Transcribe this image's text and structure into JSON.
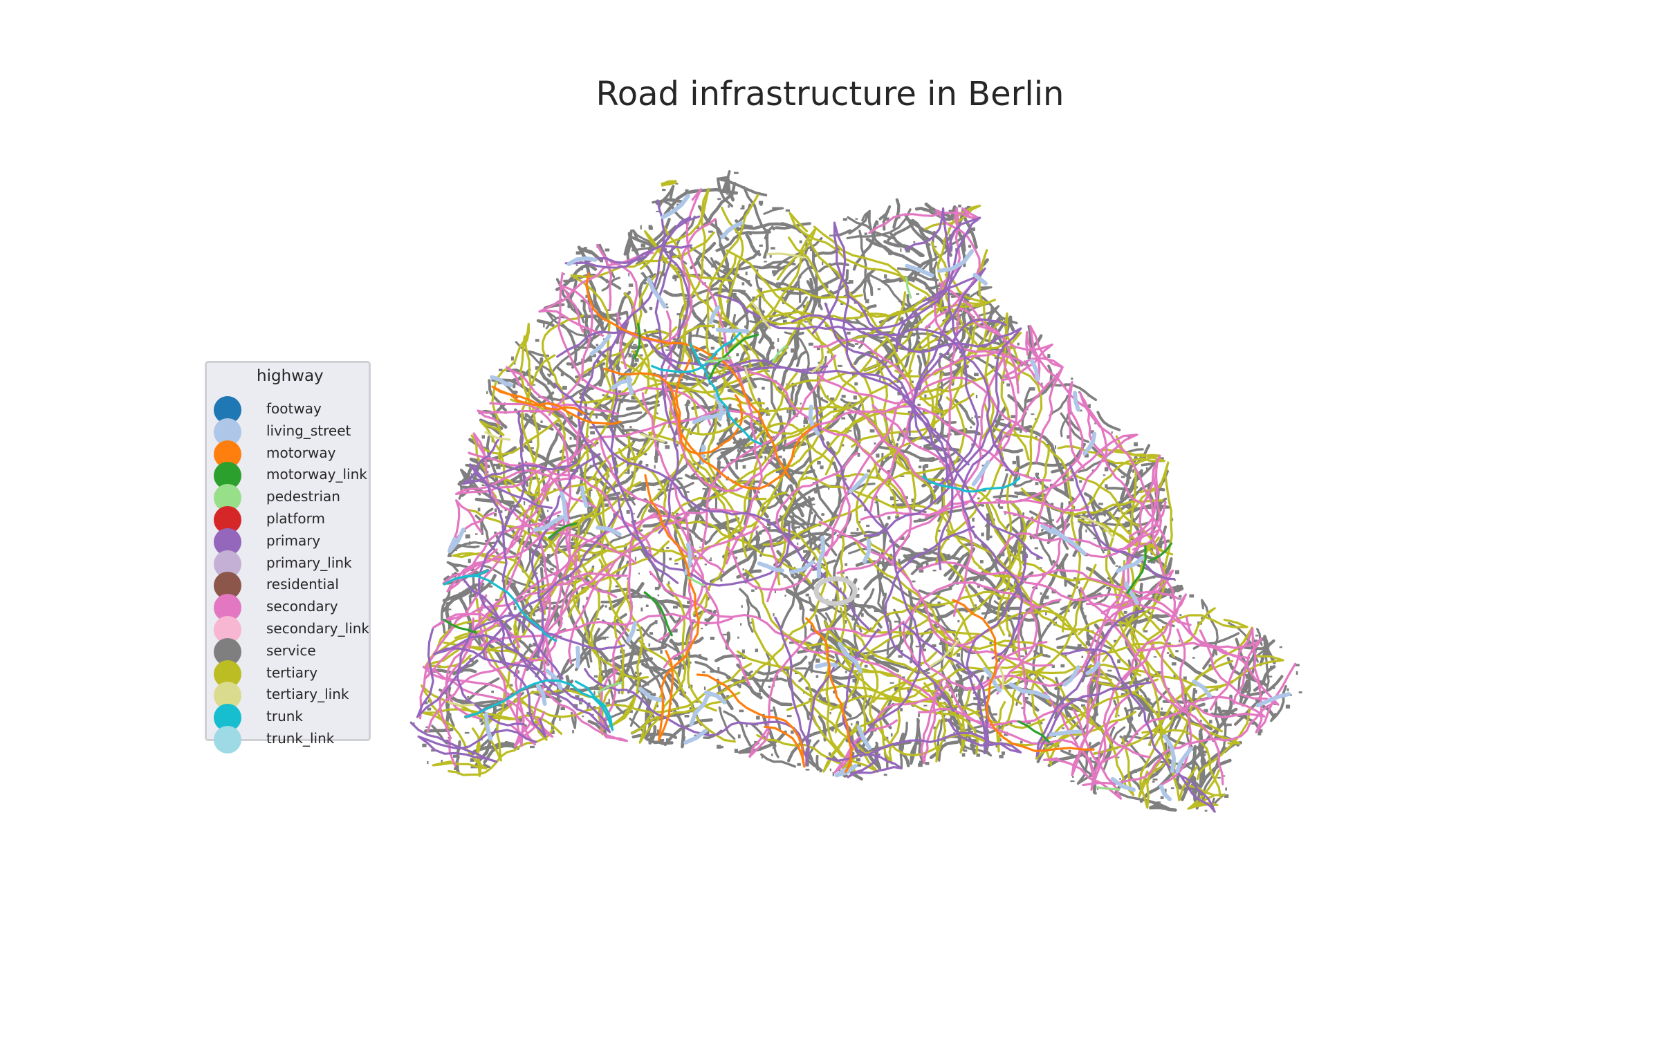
{
  "map": {
    "title": "Road infrastructure in Berlin"
  },
  "legend": {
    "title": "highway",
    "items": [
      {
        "label": "footway",
        "color": "#1f77b4"
      },
      {
        "label": "living_street",
        "color": "#aec7e8"
      },
      {
        "label": "motorway",
        "color": "#ff7f0e"
      },
      {
        "label": "motorway_link",
        "color": "#2ca02c"
      },
      {
        "label": "pedestrian",
        "color": "#98df8a"
      },
      {
        "label": "platform",
        "color": "#d62728"
      },
      {
        "label": "primary",
        "color": "#9467bd"
      },
      {
        "label": "primary_link",
        "color": "#c5b0d5"
      },
      {
        "label": "residential",
        "color": "#8c564b"
      },
      {
        "label": "secondary",
        "color": "#e377c2"
      },
      {
        "label": "secondary_link",
        "color": "#f7b6d2"
      },
      {
        "label": "service",
        "color": "#7f7f7f"
      },
      {
        "label": "tertiary",
        "color": "#bcbd22"
      },
      {
        "label": "tertiary_link",
        "color": "#dbdb8d"
      },
      {
        "label": "trunk",
        "color": "#17becf"
      },
      {
        "label": "trunk_link",
        "color": "#9edae5"
      }
    ]
  }
}
